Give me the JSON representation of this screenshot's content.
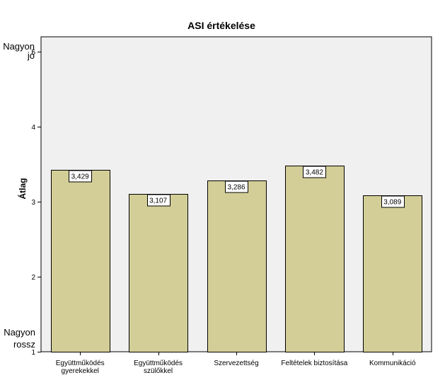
{
  "chart_data": {
    "type": "bar",
    "title": "ASI értékelése",
    "xlabel": "",
    "ylabel": "Átlag",
    "categories": [
      [
        "Együttműködés",
        "gyerekekkel"
      ],
      [
        "Együttműködés",
        "szülőkkel"
      ],
      [
        "Szervezettség"
      ],
      [
        "Feltételek biztosítása"
      ],
      [
        "Kommunikáció"
      ]
    ],
    "values": [
      3.429,
      3.107,
      3.286,
      3.482,
      3.089
    ],
    "value_labels": [
      "3,429",
      "3,107",
      "3,286",
      "3,482",
      "3,089"
    ],
    "ylim": [
      1,
      5.2
    ],
    "yticks": [
      1,
      2,
      3,
      4,
      5
    ],
    "anchor_labels": {
      "top": [
        "Nagyon",
        "jó"
      ],
      "bottom": [
        "Nagyon",
        "rossz"
      ]
    },
    "grid": false,
    "legend": "none",
    "colors": {
      "bar_fill": "#d3ce97",
      "bar_stroke": "#000000",
      "plot_background": "#f0f0f0"
    }
  }
}
